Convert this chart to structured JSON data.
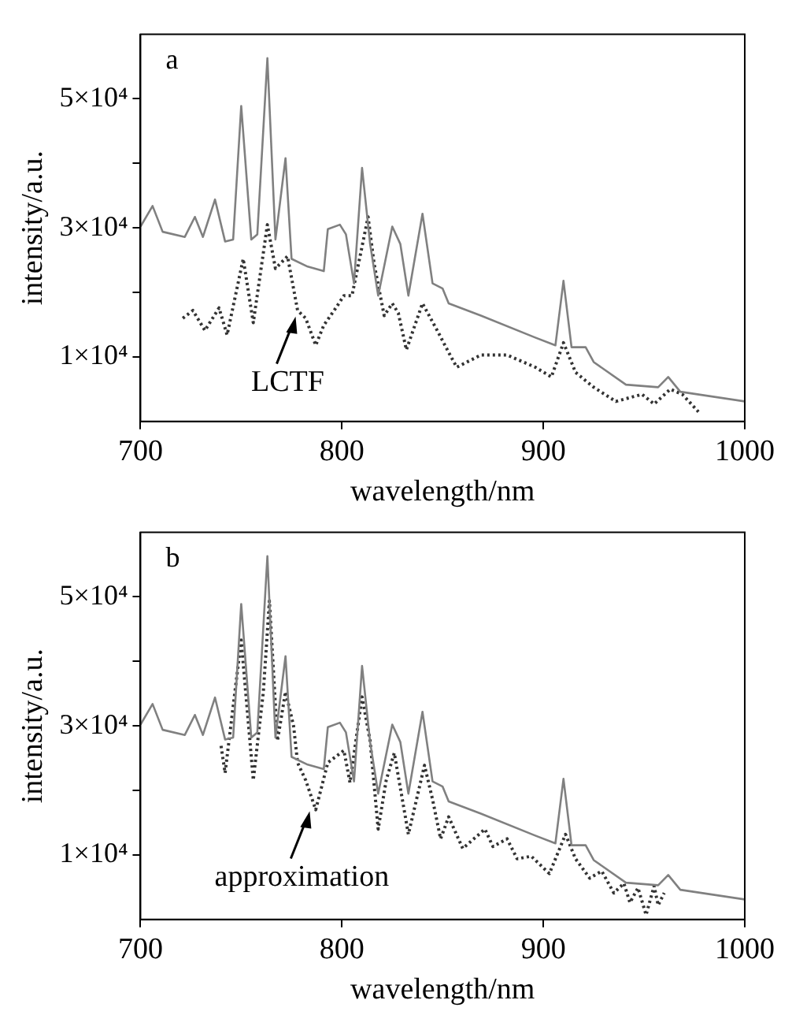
{
  "chart_data": [
    {
      "type": "line",
      "title": "a",
      "xlabel": "wavelength/nm",
      "ylabel": "intensity/a.u.",
      "xlim": [
        700,
        1000
      ],
      "xticks": [
        700,
        800,
        900,
        1000
      ],
      "ylim": [
        0,
        60000
      ],
      "yticks": [
        {
          "value": 10000,
          "label": "1×10⁴"
        },
        {
          "value": 20000,
          "label": null
        },
        {
          "value": 30000,
          "label": "3×10⁴"
        },
        {
          "value": 40000,
          "label": null
        },
        {
          "value": 50000,
          "label": "5×10⁴"
        }
      ],
      "grid": false,
      "legend": false,
      "marker": "none",
      "annotations": [
        {
          "text": "LCTF",
          "x": 777,
          "y": 17000
        }
      ],
      "series": [
        {
          "color": "#808080",
          "line_style": "solid",
          "x": [
            700,
            706,
            711,
            722,
            727,
            731,
            737,
            742,
            746,
            750,
            755,
            758,
            763,
            767,
            772,
            775,
            783,
            791,
            793,
            799,
            802,
            806,
            810,
            814,
            818,
            825,
            829,
            833,
            840,
            845,
            850,
            853,
            869,
            896,
            906,
            910,
            914,
            921,
            925,
            941,
            957,
            962,
            968,
            1000
          ],
          "values": [
            30200,
            33400,
            29400,
            28600,
            31700,
            28600,
            34400,
            27900,
            28200,
            48900,
            28200,
            29000,
            56300,
            28200,
            40800,
            25200,
            24000,
            23300,
            29800,
            30500,
            29000,
            21400,
            39300,
            27500,
            19500,
            30200,
            27500,
            19500,
            32200,
            21400,
            20600,
            18300,
            16400,
            13000,
            11800,
            21800,
            11500,
            11500,
            9200,
            5700,
            5300,
            6900,
            4600,
            3100
          ]
        },
        {
          "color": "#333333",
          "line_style": "dotted",
          "x": [
            721,
            726,
            732,
            739,
            743,
            751,
            756,
            763,
            767,
            773,
            778,
            782,
            787,
            791,
            797,
            801,
            805,
            813,
            816,
            821,
            825,
            828,
            832,
            840,
            848,
            853,
            857,
            869,
            882,
            896,
            904,
            910,
            916,
            925,
            936,
            949,
            955,
            963,
            969,
            977
          ],
          "values": [
            16000,
            17200,
            14100,
            17600,
            13400,
            25200,
            15300,
            30500,
            23700,
            25600,
            17200,
            16000,
            11800,
            14900,
            17600,
            19500,
            19500,
            31700,
            24400,
            16400,
            18300,
            16800,
            11100,
            18300,
            13700,
            10700,
            8400,
            10300,
            10300,
            8400,
            6900,
            12200,
            7600,
            5300,
            3100,
            4200,
            2700,
            5000,
            4200,
            1500
          ]
        }
      ]
    },
    {
      "type": "line",
      "title": "b",
      "xlabel": "wavelength/nm",
      "ylabel": "intensity/a.u.",
      "xlim": [
        700,
        1000
      ],
      "xticks": [
        700,
        800,
        900,
        1000
      ],
      "ylim": [
        0,
        60000
      ],
      "yticks": [
        {
          "value": 10000,
          "label": "1×10⁴"
        },
        {
          "value": 20000,
          "label": null
        },
        {
          "value": 30000,
          "label": "3×10⁴"
        },
        {
          "value": 40000,
          "label": null
        },
        {
          "value": 50000,
          "label": "5×10⁴"
        }
      ],
      "grid": false,
      "legend": false,
      "marker": "none",
      "annotations": [
        {
          "text": "approximation",
          "x": 784,
          "y": 17500
        }
      ],
      "series": [
        {
          "color": "#808080",
          "line_style": "solid",
          "x": [
            700,
            706,
            711,
            722,
            727,
            731,
            737,
            742,
            746,
            750,
            755,
            758,
            763,
            767,
            772,
            775,
            783,
            791,
            793,
            799,
            802,
            806,
            810,
            814,
            818,
            825,
            829,
            833,
            840,
            845,
            850,
            853,
            869,
            896,
            906,
            910,
            914,
            921,
            925,
            941,
            957,
            962,
            968,
            1000
          ],
          "values": [
            30200,
            33400,
            29400,
            28600,
            31700,
            28600,
            34400,
            27900,
            28200,
            48900,
            28200,
            29000,
            56300,
            28200,
            40800,
            25200,
            24000,
            23300,
            29800,
            30500,
            29000,
            21400,
            39300,
            27500,
            19500,
            30200,
            27500,
            19500,
            32200,
            21400,
            20600,
            18300,
            16400,
            13000,
            11800,
            21800,
            11500,
            11500,
            9200,
            5700,
            5300,
            6900,
            4600,
            3100
          ]
        },
        {
          "color": "#333333",
          "line_style": "dotted",
          "x": [
            740,
            742,
            746,
            750,
            756,
            761,
            764,
            768,
            772,
            776,
            778,
            782,
            787,
            793,
            801,
            804,
            810,
            814,
            818,
            822,
            826,
            830,
            833,
            841,
            845,
            849,
            853,
            860,
            871,
            875,
            882,
            887,
            894,
            903,
            911,
            916,
            923,
            929,
            935,
            940,
            943,
            947,
            951,
            955,
            957,
            960
          ],
          "values": [
            26900,
            22700,
            33000,
            43300,
            21600,
            35300,
            49400,
            27700,
            35300,
            30000,
            24300,
            21600,
            17000,
            24300,
            26200,
            21200,
            34500,
            27700,
            14000,
            21600,
            25800,
            18600,
            13200,
            23900,
            18600,
            12500,
            15900,
            11000,
            14000,
            11300,
            12500,
            9400,
            9800,
            7100,
            13200,
            9400,
            6400,
            7500,
            4100,
            5600,
            2600,
            4900,
            700,
            5200,
            2200,
            4100
          ]
        }
      ]
    }
  ]
}
